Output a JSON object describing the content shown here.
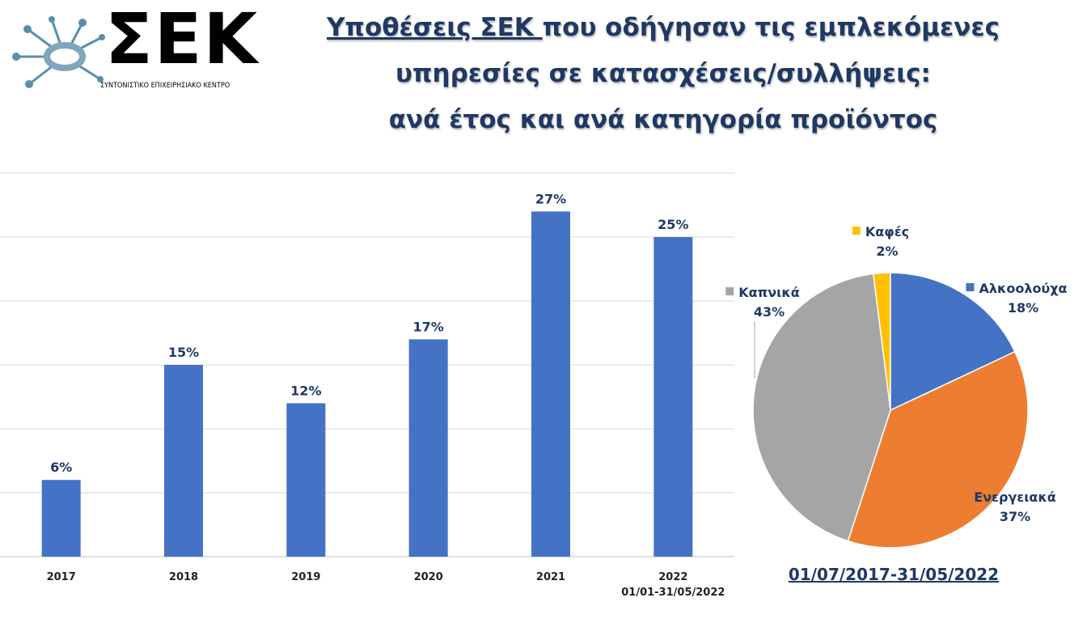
{
  "logo": {
    "letters": "ΣΕΚ",
    "subtitle": "ΣΥΝΤΟΝΙΣΤΙΚΟ ΕΠΙΧΕΙΡΗΣΙΑΚΟ ΚΕΝΤΡΟ",
    "colors": {
      "node": "#5a8fa8",
      "hub_ring": "#7fa6bb",
      "letters": "#000000"
    }
  },
  "title": {
    "underlined": "Υποθέσεις ΣΕΚ ",
    "line1_rest": "που οδήγησαν τις εμπλεκόμενες",
    "line2": "υπηρεσίες σε  κατασχέσεις/συλλήψεις:",
    "line3": "ανά έτος και ανά κατηγορία προϊόντος"
  },
  "chart_data": [
    {
      "type": "bar",
      "categories": [
        "2017",
        "2018",
        "2019",
        "2020",
        "2021",
        "2022"
      ],
      "category_sublabels": [
        "",
        "",
        "",
        "",
        "",
        "01/01-31/05/2022"
      ],
      "values": [
        6,
        15,
        12,
        17,
        27,
        25
      ],
      "value_labels": [
        "6%",
        "15%",
        "12%",
        "17%",
        "27%",
        "25%"
      ],
      "unit": "%",
      "ylim": [
        0,
        30
      ],
      "grid": true,
      "colors": {
        "bar": "#4472c4",
        "grid": "#d9d9d9",
        "label": "#1f3864"
      }
    },
    {
      "type": "pie",
      "labels": [
        "Αλκοολούχα",
        "Ενεργειακά",
        "Καπνικά",
        "Καφές"
      ],
      "values": [
        18,
        37,
        43,
        2
      ],
      "value_labels": [
        "18%",
        "37%",
        "43%",
        "2%"
      ],
      "colors": [
        "#4472c4",
        "#ed7d31",
        "#a5a5a5",
        "#ffc000"
      ],
      "period": "01/07/2017-31/05/2022",
      "label_color": "#1f3864"
    }
  ]
}
